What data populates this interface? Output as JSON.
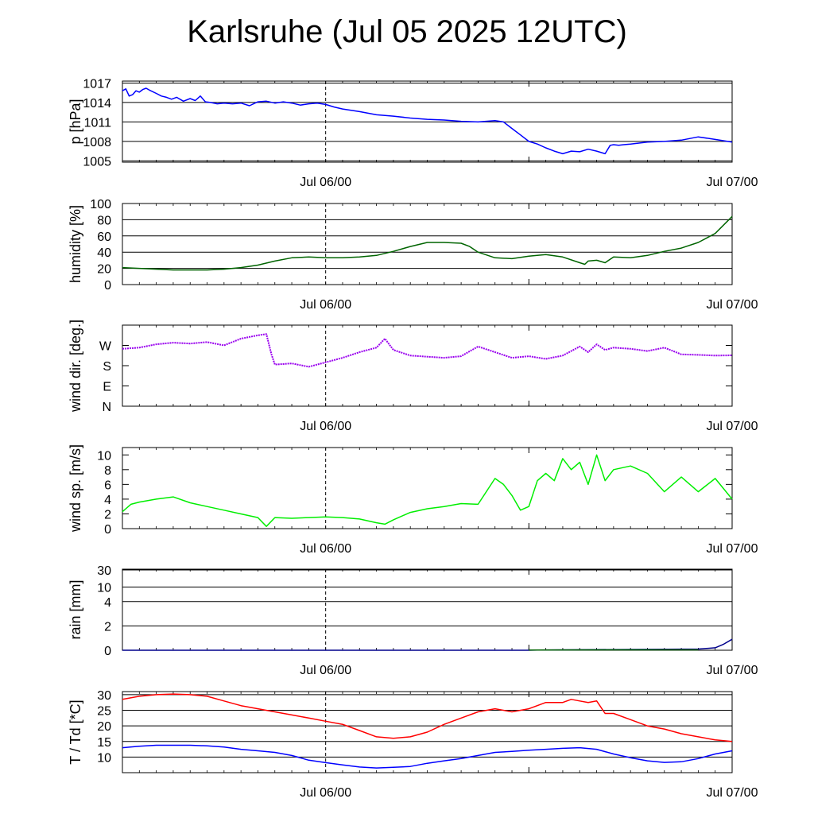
{
  "title": "Karlsruhe (Jul 05 2025 12UTC)",
  "chart_data": [
    {
      "id": "pressure",
      "type": "line",
      "ylabel": "p [hPa]",
      "yticks": [
        {
          "v": 1005,
          "label": "1005"
        },
        {
          "v": 1008,
          "label": "1008"
        },
        {
          "v": 1011,
          "label": "1011"
        },
        {
          "v": 1014,
          "label": "1014"
        },
        {
          "v": 1017,
          "label": "1017"
        }
      ],
      "ylim": [
        1004.8,
        1017.3
      ],
      "grid": true,
      "xticks": [
        {
          "v": 12,
          "label": "Jul 06/00"
        },
        {
          "v": 36,
          "label": "Jul 07/00"
        }
      ],
      "xlim": [
        0,
        36
      ],
      "series": [
        {
          "color": "#0000ff",
          "x": [
            0,
            0.2,
            0.4,
            0.6,
            0.8,
            1.0,
            1.2,
            1.4,
            1.6,
            2.0,
            2.3,
            2.6,
            2.9,
            3.2,
            3.6,
            4.0,
            4.3,
            4.6,
            4.9,
            5.2,
            5.6,
            6.0,
            6.5,
            7.0,
            7.5,
            8.0,
            8.5,
            9.0,
            9.5,
            10.0,
            10.5,
            11.0,
            11.5,
            12.0,
            12.5,
            13.0,
            14.0,
            15.0,
            16.0,
            17.0,
            18.0,
            19.0,
            20.0,
            21.0,
            22.0,
            22.5,
            23.0,
            23.5,
            24.0,
            24.5,
            25.0,
            25.5,
            26.0,
            26.5,
            27.0,
            27.5,
            28.0,
            28.5,
            28.8,
            29.0,
            29.3,
            29.6,
            30.0,
            31.0,
            32.0,
            33.0,
            34.0,
            35.0,
            36.0
          ],
          "y": [
            1015.8,
            1016.1,
            1015.0,
            1015.2,
            1015.8,
            1015.6,
            1016.0,
            1016.2,
            1015.9,
            1015.4,
            1015.0,
            1014.8,
            1014.5,
            1014.8,
            1014.2,
            1014.6,
            1014.3,
            1015.0,
            1014.1,
            1014.0,
            1013.8,
            1013.9,
            1013.8,
            1013.9,
            1013.5,
            1014.1,
            1014.2,
            1013.9,
            1014.1,
            1013.9,
            1013.6,
            1013.8,
            1013.9,
            1013.7,
            1013.3,
            1013.0,
            1012.6,
            1012.1,
            1011.9,
            1011.6,
            1011.4,
            1011.3,
            1011.1,
            1011.0,
            1011.2,
            1011.0,
            1010.0,
            1009.0,
            1008.0,
            1007.6,
            1007.0,
            1006.5,
            1006.1,
            1006.5,
            1006.4,
            1006.8,
            1006.5,
            1006.1,
            1007.4,
            1007.5,
            1007.4,
            1007.5,
            1007.6,
            1007.9,
            1008.0,
            1008.2,
            1008.7,
            1008.3,
            1007.9
          ]
        }
      ]
    },
    {
      "id": "humidity",
      "type": "line",
      "ylabel": "humidity [%]",
      "yticks": [
        {
          "v": 0,
          "label": "0"
        },
        {
          "v": 20,
          "label": "20"
        },
        {
          "v": 40,
          "label": "40"
        },
        {
          "v": 60,
          "label": "60"
        },
        {
          "v": 80,
          "label": "80"
        },
        {
          "v": 100,
          "label": "100"
        }
      ],
      "ylim": [
        0,
        100
      ],
      "grid": true,
      "xticks": [
        {
          "v": 12,
          "label": "Jul 06/00"
        },
        {
          "v": 36,
          "label": "Jul 07/00"
        }
      ],
      "xlim": [
        0,
        36
      ],
      "series": [
        {
          "color": "#006400",
          "x": [
            0,
            1,
            2,
            3,
            4,
            5,
            6,
            7,
            8,
            9,
            10,
            11,
            12,
            13,
            14,
            15,
            16,
            17,
            18,
            19,
            20,
            20.5,
            21,
            22,
            23,
            24,
            25,
            26,
            27,
            27.3,
            27.5,
            28,
            28.5,
            29,
            30,
            31,
            32,
            33,
            34,
            35,
            36
          ],
          "y": [
            21,
            20,
            19,
            18,
            18,
            18,
            19,
            21,
            24,
            29,
            33,
            34,
            33,
            33,
            34,
            36,
            41,
            47,
            52,
            52,
            51,
            47,
            40,
            33,
            32,
            35,
            37,
            34,
            27,
            25,
            29,
            30,
            27,
            34,
            33,
            36,
            41,
            45,
            52,
            63,
            84
          ]
        }
      ]
    },
    {
      "id": "wind-direction",
      "type": "scatter",
      "ylabel": "wind dir. [deg.]",
      "yticks": [
        {
          "v": 0,
          "label": "N"
        },
        {
          "v": 90,
          "label": "E"
        },
        {
          "v": 180,
          "label": "S"
        },
        {
          "v": 270,
          "label": "W"
        }
      ],
      "ylim": [
        0,
        360
      ],
      "grid": false,
      "xticks": [
        {
          "v": 12,
          "label": "Jul 06/00"
        },
        {
          "v": 36,
          "label": "Jul 07/00"
        }
      ],
      "xlim": [
        0,
        36
      ],
      "series": [
        {
          "color": "#9900ee",
          "x": [
            0,
            1,
            2,
            3,
            4,
            5,
            6,
            7,
            8,
            8.5,
            8.8,
            9,
            10,
            11,
            12,
            13,
            14,
            15,
            15.5,
            16,
            17,
            18,
            19,
            20,
            21,
            22,
            23,
            24,
            25,
            26,
            27,
            27.5,
            28,
            28.5,
            29,
            30,
            31,
            32,
            33,
            34,
            35,
            36
          ],
          "y": [
            255,
            260,
            275,
            282,
            278,
            285,
            270,
            300,
            315,
            320,
            230,
            185,
            190,
            175,
            195,
            215,
            240,
            260,
            300,
            250,
            225,
            220,
            215,
            222,
            265,
            240,
            215,
            222,
            210,
            225,
            265,
            240,
            275,
            250,
            260,
            255,
            245,
            260,
            230,
            228,
            225,
            226
          ]
        }
      ]
    },
    {
      "id": "wind-speed",
      "type": "line",
      "ylabel": "wind sp. [m/s]",
      "yticks": [
        {
          "v": 0,
          "label": "0"
        },
        {
          "v": 2,
          "label": "2"
        },
        {
          "v": 4,
          "label": "4"
        },
        {
          "v": 6,
          "label": "6"
        },
        {
          "v": 8,
          "label": "8"
        },
        {
          "v": 10,
          "label": "10"
        }
      ],
      "ylim": [
        0,
        11
      ],
      "grid": false,
      "xticks": [
        {
          "v": 12,
          "label": "Jul 06/00"
        },
        {
          "v": 36,
          "label": "Jul 07/00"
        }
      ],
      "xlim": [
        0,
        36
      ],
      "series": [
        {
          "color": "#00ee00",
          "x": [
            0,
            0.5,
            1,
            2,
            3,
            4,
            5,
            6,
            7,
            8,
            8.5,
            9,
            10,
            11,
            12,
            13,
            14,
            15,
            15.5,
            16,
            17,
            18,
            19,
            20,
            21,
            22,
            22.5,
            23,
            23.5,
            24,
            24.5,
            25,
            25.5,
            26,
            26.5,
            27,
            27.5,
            28,
            28.5,
            29,
            30,
            31,
            32,
            33,
            34,
            35,
            36
          ],
          "y": [
            2.3,
            3.3,
            3.6,
            4.0,
            4.3,
            3.5,
            3.0,
            2.5,
            2.0,
            1.5,
            0.3,
            1.5,
            1.4,
            1.5,
            1.6,
            1.5,
            1.3,
            0.8,
            0.6,
            1.2,
            2.2,
            2.7,
            3.0,
            3.4,
            3.3,
            6.8,
            6.0,
            4.5,
            2.5,
            3.0,
            6.5,
            7.5,
            6.5,
            9.5,
            8.0,
            9.0,
            6.0,
            10.0,
            6.5,
            8.0,
            8.5,
            7.5,
            5.0,
            7.0,
            5.0,
            6.8,
            4.0
          ]
        }
      ]
    },
    {
      "id": "rain",
      "type": "line",
      "ylabel": "rain [mm]",
      "yticks": [
        {
          "v": 0,
          "label": "0",
          "pos": 0
        },
        {
          "v": 2,
          "label": "2",
          "pos": 0.3
        },
        {
          "v": 4,
          "label": "4",
          "pos": 0.6
        },
        {
          "v": 10,
          "label": "10",
          "pos": 0.78
        },
        {
          "v": 30,
          "label": "30",
          "pos": 0.99
        }
      ],
      "ylim": [
        0,
        30
      ],
      "scale": "nonlinear",
      "grid": true,
      "xticks": [
        {
          "v": 12,
          "label": "Jul 06/00"
        },
        {
          "v": 36,
          "label": "Jul 07/00"
        }
      ],
      "xlim": [
        0,
        36
      ],
      "series": [
        {
          "color": "#00008b",
          "x": [
            0,
            24,
            24.5,
            34,
            35,
            35.5,
            36
          ],
          "y": [
            0,
            0,
            0.02,
            0.1,
            0.2,
            0.5,
            0.9
          ]
        },
        {
          "color": "#006400",
          "x": [
            24,
            30,
            34
          ],
          "y": [
            0.02,
            0.03,
            0.03
          ]
        }
      ]
    },
    {
      "id": "temperature",
      "type": "line",
      "ylabel": "T / Td [*C]",
      "yticks": [
        {
          "v": 10,
          "label": "10"
        },
        {
          "v": 15,
          "label": "15"
        },
        {
          "v": 20,
          "label": "20"
        },
        {
          "v": 25,
          "label": "25"
        },
        {
          "v": 30,
          "label": "30"
        }
      ],
      "ylim": [
        5,
        31
      ],
      "grid": true,
      "xticks": [
        {
          "v": 12,
          "label": "Jul 06/00"
        },
        {
          "v": 36,
          "label": "Jul 07/00"
        }
      ],
      "xlim": [
        0,
        36
      ],
      "series": [
        {
          "color": "#ff0000",
          "x": [
            0,
            1,
            2,
            3,
            4,
            5,
            6,
            7,
            8,
            9,
            10,
            11,
            12,
            13,
            14,
            15,
            16,
            17,
            18,
            19,
            20,
            21,
            22,
            23,
            24,
            25,
            26,
            26.5,
            27,
            27.5,
            28,
            28.5,
            29,
            30,
            31,
            32,
            33,
            34,
            35,
            36
          ],
          "y": [
            28.5,
            29.5,
            30.0,
            30.2,
            30.0,
            29.5,
            28.0,
            26.5,
            25.5,
            24.5,
            23.5,
            22.5,
            21.5,
            20.5,
            18.5,
            16.5,
            16.0,
            16.5,
            18.0,
            20.5,
            22.5,
            24.5,
            25.5,
            24.5,
            25.5,
            27.5,
            27.5,
            28.5,
            28.0,
            27.5,
            28.0,
            24.0,
            24.0,
            22.0,
            20.0,
            19.0,
            17.5,
            16.5,
            15.5,
            15.0
          ]
        },
        {
          "color": "#0000ff",
          "x": [
            0,
            1,
            2,
            3,
            4,
            5,
            6,
            7,
            8,
            9,
            10,
            11,
            12,
            13,
            14,
            15,
            16,
            17,
            18,
            19,
            20,
            21,
            22,
            23,
            24,
            25,
            26,
            27,
            28,
            29,
            30,
            31,
            32,
            33,
            34,
            35,
            36
          ],
          "y": [
            13.0,
            13.5,
            13.8,
            13.8,
            13.8,
            13.6,
            13.2,
            12.5,
            12.0,
            11.5,
            10.5,
            9.0,
            8.2,
            7.5,
            6.8,
            6.5,
            6.7,
            7.0,
            8.0,
            8.8,
            9.5,
            10.5,
            11.5,
            11.8,
            12.2,
            12.5,
            12.8,
            13.0,
            12.5,
            11.0,
            9.8,
            8.8,
            8.3,
            8.5,
            9.5,
            11.0,
            12.0
          ]
        }
      ]
    }
  ]
}
